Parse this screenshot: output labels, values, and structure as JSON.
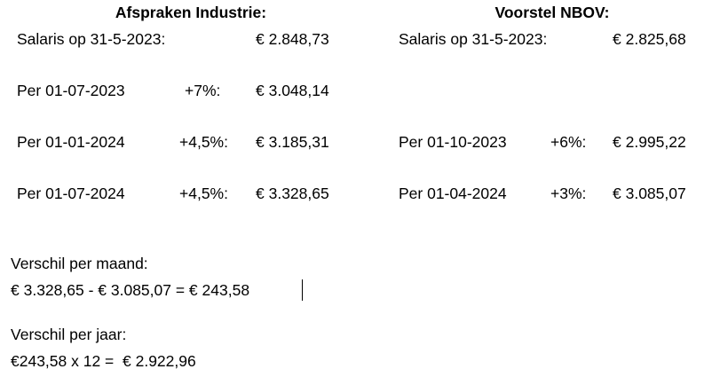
{
  "left": {
    "title": "Afspraken Industrie:",
    "rows": [
      {
        "label": "Salaris op 31-5-2023:",
        "amount": "€ 2.848,73"
      },
      {
        "label": "Per 01-07-2023",
        "pct": "+7%:",
        "amount": "€ 3.048,14"
      },
      {
        "label": "Per 01-01-2024",
        "pct": "+4,5%:",
        "amount": "€ 3.185,31"
      },
      {
        "label": "Per 01-07-2024",
        "pct": "+4,5%:",
        "amount": "€ 3.328,65"
      }
    ]
  },
  "right": {
    "title": "Voorstel NBOV:",
    "rows": [
      {
        "label": "Salaris op 31-5-2023:",
        "amount": "€ 2.825,68"
      },
      {
        "label": "Per 01-10-2023",
        "pct": "+6%:",
        "amount": "€ 2.995,22"
      },
      {
        "label": "Per 01-04-2024",
        "pct": "+3%:",
        "amount": "€ 3.085,07"
      }
    ]
  },
  "monthly": {
    "heading": "Verschil per maand:",
    "calculation": "€ 3.328,65 - € 3.085,07 = € 243,58"
  },
  "yearly": {
    "heading": "Verschil per jaar:",
    "calculation": "€243,58 x 12 =  € 2.922,96"
  }
}
